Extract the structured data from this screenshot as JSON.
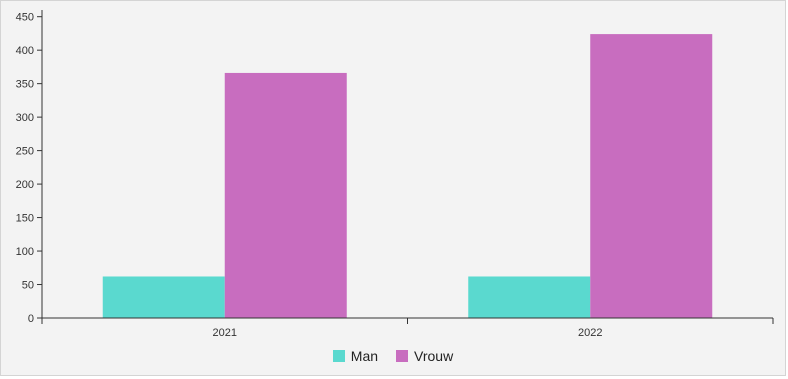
{
  "chart_data": {
    "type": "bar",
    "categories": [
      "2021",
      "2022"
    ],
    "series": [
      {
        "name": "Man",
        "color": "#5ad9cf",
        "values": [
          62,
          62
        ]
      },
      {
        "name": "Vrouw",
        "color": "#c86dbf",
        "values": [
          366,
          424
        ]
      }
    ],
    "yticks": [
      "0",
      "50",
      "100",
      "150",
      "200",
      "250",
      "300",
      "350",
      "400",
      "450"
    ],
    "ylim": [
      0,
      460
    ],
    "title": "",
    "xlabel": "",
    "ylabel": "",
    "legend_position": "bottom-center",
    "grid": false
  }
}
